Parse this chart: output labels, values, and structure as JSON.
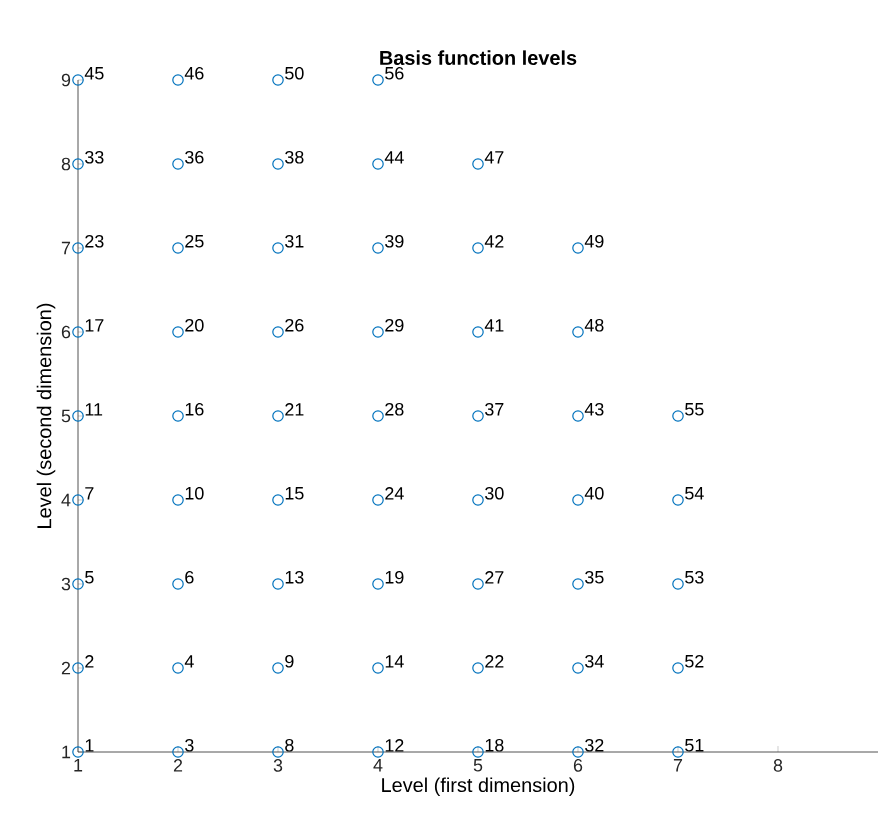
{
  "chart_data": {
    "type": "scatter",
    "title": "Basis function levels",
    "xlabel": "Level (first dimension)",
    "ylabel": "Level (second dimension)",
    "xlim": [
      1,
      9
    ],
    "ylim": [
      1,
      9
    ],
    "xticks": [
      1,
      2,
      3,
      4,
      5,
      6,
      7,
      8
    ],
    "yticks": [
      1,
      2,
      3,
      4,
      5,
      6,
      7,
      8,
      9
    ],
    "marker": "circle",
    "legend": false,
    "series": [
      {
        "color": "#0072bd",
        "x": [
          1,
          1,
          1,
          1,
          1,
          1,
          1,
          1,
          1,
          2,
          2,
          2,
          2,
          2,
          2,
          2,
          2,
          2,
          3,
          3,
          3,
          3,
          3,
          3,
          3,
          3,
          3,
          4,
          4,
          4,
          4,
          4,
          4,
          4,
          4,
          4,
          5,
          5,
          5,
          5,
          5,
          5,
          5,
          5,
          6,
          6,
          6,
          6,
          6,
          6,
          6,
          7,
          7,
          7,
          7,
          7
        ],
        "values": [
          1,
          2,
          3,
          4,
          5,
          6,
          7,
          8,
          9,
          1,
          2,
          3,
          4,
          5,
          6,
          7,
          8,
          9,
          1,
          2,
          3,
          4,
          5,
          6,
          7,
          8,
          9,
          1,
          2,
          3,
          4,
          5,
          6,
          7,
          8,
          9,
          1,
          2,
          3,
          4,
          5,
          6,
          7,
          8,
          1,
          2,
          3,
          4,
          5,
          6,
          7,
          1,
          2,
          3,
          4,
          5
        ]
      }
    ],
    "annotations": [
      {
        "text": "1",
        "x": 1,
        "y": 1
      },
      {
        "text": "2",
        "x": 1,
        "y": 2
      },
      {
        "text": "5",
        "x": 1,
        "y": 3
      },
      {
        "text": "7",
        "x": 1,
        "y": 4
      },
      {
        "text": "11",
        "x": 1,
        "y": 5
      },
      {
        "text": "17",
        "x": 1,
        "y": 6
      },
      {
        "text": "23",
        "x": 1,
        "y": 7
      },
      {
        "text": "33",
        "x": 1,
        "y": 8
      },
      {
        "text": "45",
        "x": 1,
        "y": 9
      },
      {
        "text": "3",
        "x": 2,
        "y": 1
      },
      {
        "text": "4",
        "x": 2,
        "y": 2
      },
      {
        "text": "6",
        "x": 2,
        "y": 3
      },
      {
        "text": "10",
        "x": 2,
        "y": 4
      },
      {
        "text": "16",
        "x": 2,
        "y": 5
      },
      {
        "text": "20",
        "x": 2,
        "y": 6
      },
      {
        "text": "25",
        "x": 2,
        "y": 7
      },
      {
        "text": "36",
        "x": 2,
        "y": 8
      },
      {
        "text": "46",
        "x": 2,
        "y": 9
      },
      {
        "text": "8",
        "x": 3,
        "y": 1
      },
      {
        "text": "9",
        "x": 3,
        "y": 2
      },
      {
        "text": "13",
        "x": 3,
        "y": 3
      },
      {
        "text": "15",
        "x": 3,
        "y": 4
      },
      {
        "text": "21",
        "x": 3,
        "y": 5
      },
      {
        "text": "26",
        "x": 3,
        "y": 6
      },
      {
        "text": "31",
        "x": 3,
        "y": 7
      },
      {
        "text": "38",
        "x": 3,
        "y": 8
      },
      {
        "text": "50",
        "x": 3,
        "y": 9
      },
      {
        "text": "12",
        "x": 4,
        "y": 1
      },
      {
        "text": "14",
        "x": 4,
        "y": 2
      },
      {
        "text": "19",
        "x": 4,
        "y": 3
      },
      {
        "text": "24",
        "x": 4,
        "y": 4
      },
      {
        "text": "28",
        "x": 4,
        "y": 5
      },
      {
        "text": "29",
        "x": 4,
        "y": 6
      },
      {
        "text": "39",
        "x": 4,
        "y": 7
      },
      {
        "text": "44",
        "x": 4,
        "y": 8
      },
      {
        "text": "56",
        "x": 4,
        "y": 9
      },
      {
        "text": "18",
        "x": 5,
        "y": 1
      },
      {
        "text": "22",
        "x": 5,
        "y": 2
      },
      {
        "text": "27",
        "x": 5,
        "y": 3
      },
      {
        "text": "30",
        "x": 5,
        "y": 4
      },
      {
        "text": "37",
        "x": 5,
        "y": 5
      },
      {
        "text": "41",
        "x": 5,
        "y": 6
      },
      {
        "text": "42",
        "x": 5,
        "y": 7
      },
      {
        "text": "47",
        "x": 5,
        "y": 8
      },
      {
        "text": "32",
        "x": 6,
        "y": 1
      },
      {
        "text": "34",
        "x": 6,
        "y": 2
      },
      {
        "text": "35",
        "x": 6,
        "y": 3
      },
      {
        "text": "40",
        "x": 6,
        "y": 4
      },
      {
        "text": "43",
        "x": 6,
        "y": 5
      },
      {
        "text": "48",
        "x": 6,
        "y": 6
      },
      {
        "text": "49",
        "x": 6,
        "y": 7
      },
      {
        "text": "51",
        "x": 7,
        "y": 1
      },
      {
        "text": "52",
        "x": 7,
        "y": 2
      },
      {
        "text": "53",
        "x": 7,
        "y": 3
      },
      {
        "text": "54",
        "x": 7,
        "y": 4
      },
      {
        "text": "55",
        "x": 7,
        "y": 5
      }
    ]
  }
}
